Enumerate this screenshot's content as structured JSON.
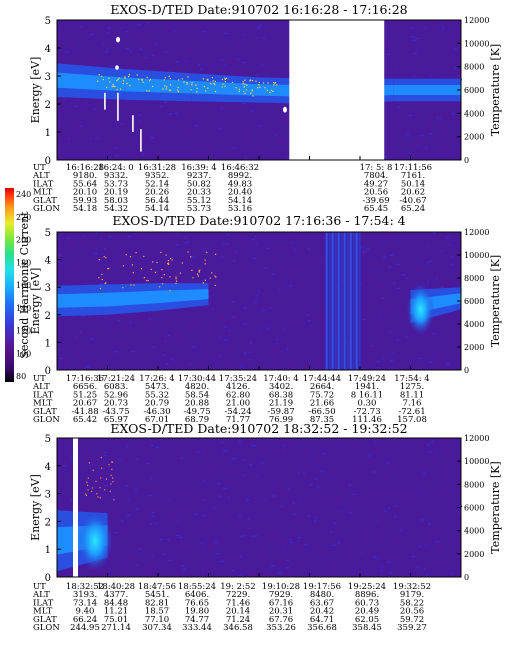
{
  "colorbar": {
    "label": "Second Harmonic Current",
    "ticks": [
      "240",
      "220",
      "200",
      "180",
      "160",
      "140",
      "120",
      "100",
      "80"
    ],
    "colors": [
      "#000000",
      "#3a0a6e",
      "#5a1490",
      "#3a3ad8",
      "#1e6ef5",
      "#1ab4ff",
      "#22e0e6",
      "#28e08a",
      "#7ee838",
      "#e8ec2a",
      "#ff9a1a",
      "#ff3a10",
      "#e00000"
    ]
  },
  "panels": [
    {
      "title": "EXOS-D/TED   Date:910702  16:16:28 - 17:16:28",
      "ylabel": "Energy [eV]",
      "y2label": "Temperature [K]",
      "yticks": [
        "0",
        "1",
        "2",
        "3",
        "4",
        "5"
      ],
      "y2ticks": [
        "0",
        "2000",
        "4000",
        "6000",
        "8000",
        "10000",
        "12000"
      ],
      "orbit": {
        "labels": [
          "UT",
          "ALT",
          "ILAT",
          "MLT",
          "GLAT",
          "GLON"
        ],
        "columns": [
          [
            "16:16:28",
            "9180.",
            "55.64",
            "20.10",
            "59.93",
            "54.18"
          ],
          [
            "16:24: 0",
            "9332.",
            "53.73",
            "20.19",
            "58.03",
            "54.32"
          ],
          [
            "16:31:28",
            "9352.",
            "52.14",
            "20.26",
            "56.44",
            "54.14"
          ],
          [
            "16:39: 4",
            "9237.",
            "50.82",
            "20.33",
            "55.12",
            "53.73"
          ],
          [
            "16:46:32",
            "8992.",
            "49.83",
            "20.40",
            "54.14",
            "53.16"
          ],
          [
            "",
            "",
            "",
            "",
            "",
            ""
          ],
          [
            "",
            "",
            "",
            "",
            "",
            ""
          ],
          [
            "17: 5: 8",
            "7804.",
            "49.27",
            "20.56",
            "-39.69",
            "65.45"
          ],
          [
            "17:11:56",
            "7161.",
            "50.14",
            "20.62",
            "-40.67",
            "65.24"
          ]
        ]
      }
    },
    {
      "title": "EXOS-D/TED   Date:910702  17:16:36 - 17:54: 4",
      "ylabel": "Energy [eV]",
      "y2label": "Temperature [K]",
      "yticks": [
        "0",
        "1",
        "2",
        "3",
        "4",
        "5"
      ],
      "y2ticks": [
        "0",
        "2000",
        "4000",
        "6000",
        "8000",
        "10000",
        "12000"
      ],
      "orbit": {
        "labels": [
          "UT",
          "ALT",
          "ILAT",
          "MLT",
          "GLAT",
          "GLON"
        ],
        "columns": [
          [
            "17:16:36",
            "6656.",
            "51.25",
            "20.67",
            "-41.88",
            "65.42"
          ],
          [
            "17:21:24",
            "6083.",
            "52.96",
            "20.73",
            "-43.75",
            "65.97"
          ],
          [
            "17:26: 4",
            "5473.",
            "55.32",
            "20.79",
            "-46.30",
            "67.01"
          ],
          [
            "17:30:44",
            "4820.",
            "58.54",
            "20.88",
            "-49.75",
            "68.79"
          ],
          [
            "17:35:24",
            "4126.",
            "62.80",
            "21.00",
            "-54.24",
            "71.77"
          ],
          [
            "17:40: 4",
            "3402.",
            "68.38",
            "21.19",
            "-59.87",
            "76.99"
          ],
          [
            "17:44:44",
            "2664.",
            "75.72",
            "21.66",
            "-66.50",
            "87.35"
          ],
          [
            "17:49:24",
            "1941.",
            "8 16.11",
            "0.30",
            "-72.73",
            "111.46"
          ],
          [
            "17:54: 4",
            "1275.",
            "81.11",
            "7.16",
            "-72.61",
            "157.08"
          ]
        ]
      }
    },
    {
      "title": "EXOS-D/TED   Date:910702  18:32:52 - 19:32:52",
      "ylabel": "Energy [eV]",
      "y2label": "Temperature [K]",
      "yticks": [
        "0",
        "1",
        "2",
        "3",
        "4",
        "5"
      ],
      "y2ticks": [
        "0",
        "2000",
        "4000",
        "6000",
        "8000",
        "10000",
        "12000"
      ],
      "orbit": {
        "labels": [
          "UT",
          "ALT",
          "ILAT",
          "MLT",
          "GLAT",
          "GLON"
        ],
        "columns": [
          [
            "18:32:52",
            "3193.",
            "73.14",
            "9.40",
            "66.24",
            "244.95"
          ],
          [
            "18:40:28",
            "4377.",
            "84.48",
            "11.21",
            "75.01",
            "271.14"
          ],
          [
            "18:47:56",
            "5451.",
            "82.81",
            "18.57",
            "77.10",
            "307.34"
          ],
          [
            "18:55:24",
            "6406.",
            "76.65",
            "19.80",
            "74.77",
            "333.44"
          ],
          [
            "19: 2:52",
            "7229.",
            "71.46",
            "20.14",
            "71.24",
            "346.58"
          ],
          [
            "19:10:28",
            "7929.",
            "67.16",
            "20.31",
            "67.76",
            "353.26"
          ],
          [
            "19:17:56",
            "8480.",
            "63.67",
            "20.42",
            "64.71",
            "356.68"
          ],
          [
            "19:25:24",
            "8896.",
            "60.73",
            "20.49",
            "62.05",
            "358.45"
          ],
          [
            "19:32:52",
            "9179.",
            "58.22",
            "20.56",
            "59.72",
            "359.27"
          ]
        ]
      }
    }
  ],
  "chart_data": [
    {
      "type": "heatmap",
      "title": "EXOS-D/TED   Date:910702  16:16:28 - 17:16:28",
      "ylabel": "Energy [eV]",
      "y2label": "Temperature [K]",
      "ylim": [
        0,
        5
      ],
      "y2lim": [
        0,
        12000
      ],
      "x": [
        "16:16:28",
        "16:24: 0",
        "16:31:28",
        "16:39: 4",
        "16:46:32",
        "17: 5: 8",
        "17:11:56"
      ],
      "colorbar_range": [
        80,
        240
      ],
      "data_gap": [
        "16:50",
        "17: 2"
      ],
      "band_center_energy_ev": [
        2.85,
        2.7,
        2.6,
        2.5,
        2.45,
        2.5,
        2.5
      ],
      "band_width_ev": [
        0.6,
        0.55,
        0.5,
        0.45,
        0.45,
        0.4,
        0.4
      ]
    },
    {
      "type": "heatmap",
      "title": "EXOS-D/TED   Date:910702  17:16:36 - 17:54: 4",
      "ylabel": "Energy [eV]",
      "y2label": "Temperature [K]",
      "ylim": [
        0,
        5
      ],
      "y2lim": [
        0,
        12000
      ],
      "x": [
        "17:16:36",
        "17:21:24",
        "17:26: 4",
        "17:30:44",
        "17:35:24",
        "17:40: 4",
        "17:44:44",
        "17:49:24",
        "17:54: 4"
      ],
      "colorbar_range": [
        80,
        240
      ],
      "band_center_energy_ev": [
        2.5,
        2.55,
        2.65,
        2.75,
        null,
        null,
        null,
        2.3,
        2.6
      ],
      "band_width_ev": [
        0.55,
        0.55,
        0.5,
        0.4,
        null,
        null,
        null,
        0.6,
        0.4
      ]
    },
    {
      "type": "heatmap",
      "title": "EXOS-D/TED   Date:910702  18:32:52 - 19:32:52",
      "ylabel": "Energy [eV]",
      "y2label": "Temperature [K]",
      "ylim": [
        0,
        5
      ],
      "y2lim": [
        0,
        12000
      ],
      "x": [
        "18:32:52",
        "18:40:28",
        "18:47:56",
        "18:55:24",
        "19: 2:52",
        "19:10:28",
        "19:17:56",
        "19:25:24",
        "19:32:52"
      ],
      "colorbar_range": [
        80,
        240
      ],
      "band_center_energy_ev": [
        1.3,
        1.5,
        null,
        null,
        null,
        null,
        null,
        null,
        null
      ],
      "band_width_ev": [
        1.1,
        0.8,
        null,
        null,
        null,
        null,
        null,
        null,
        null
      ]
    }
  ]
}
